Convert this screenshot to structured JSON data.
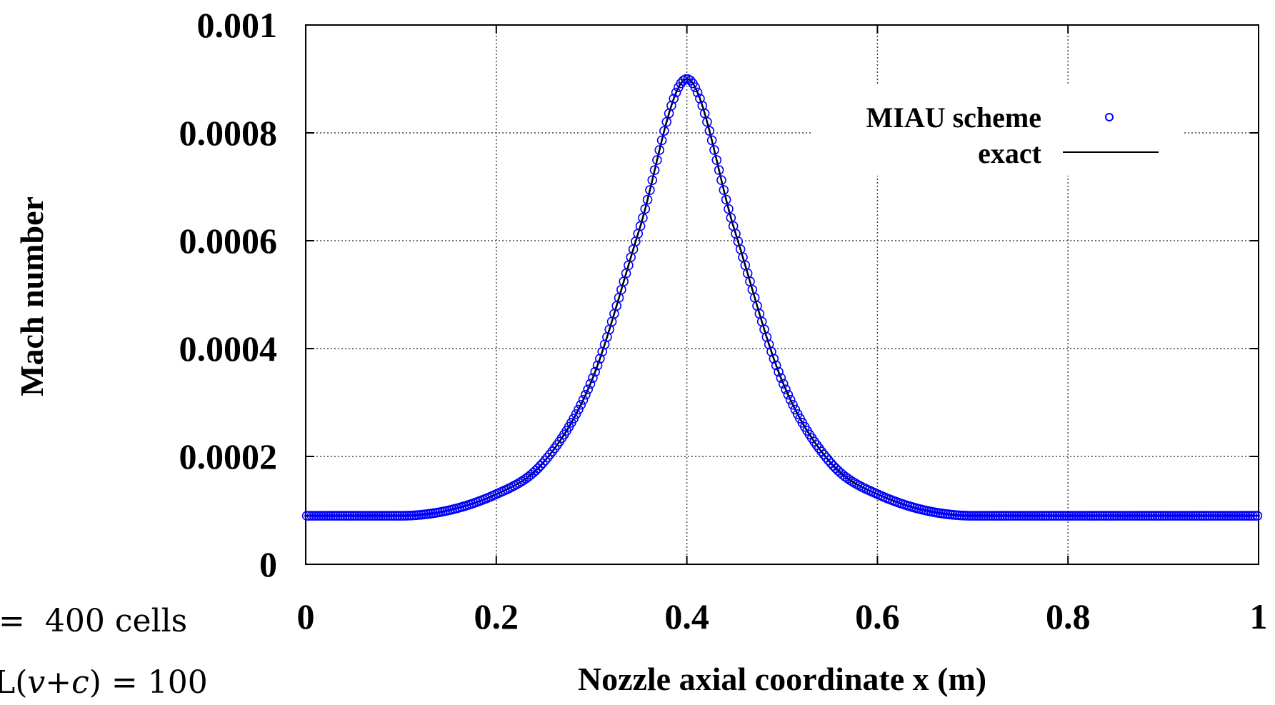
{
  "chart_data": {
    "type": "scatter",
    "xlabel": "Nozzle axial coordinate x (m)",
    "ylabel": "Mach number",
    "xlim": [
      0,
      1
    ],
    "ylim": [
      0,
      0.001
    ],
    "x_ticks": [
      "0",
      "0.2",
      "0.4",
      "0.6",
      "0.8",
      "1"
    ],
    "y_ticks": [
      "0",
      "0.0002",
      "0.0004",
      "0.0006",
      "0.0008",
      "0.001"
    ],
    "grid": true,
    "legend_position": "top-right",
    "series": [
      {
        "name": "MIAU scheme",
        "style": "markers",
        "marker": "open-circle",
        "color": "#0000ff",
        "profile": "peak",
        "n_points": 400,
        "x": [
          0,
          0.1,
          0.2,
          0.25,
          0.3,
          0.35,
          0.4,
          0.45,
          0.5,
          0.55,
          0.6,
          0.7,
          0.8,
          1
        ],
        "y": [
          9e-05,
          9e-05,
          0.00013,
          0.00019,
          0.00034,
          0.00062,
          0.0009,
          0.00062,
          0.00034,
          0.00019,
          0.00013,
          9e-05,
          9e-05,
          9e-05
        ]
      },
      {
        "name": "exact",
        "style": "line",
        "color": "#000000",
        "profile": "peak",
        "x": [
          0,
          0.1,
          0.2,
          0.25,
          0.3,
          0.35,
          0.4,
          0.45,
          0.5,
          0.55,
          0.6,
          0.7,
          0.8,
          1
        ],
        "y": [
          9e-05,
          9e-05,
          0.00013,
          0.00019,
          0.00034,
          0.00062,
          0.0009,
          0.00062,
          0.00034,
          0.00019,
          0.00013,
          9e-05,
          9e-05,
          9e-05
        ]
      }
    ]
  },
  "annotations": {
    "cells_prefix": "=",
    "cells_text": "400 cells",
    "cfl_prefix": "L(",
    "cfl_var": "v",
    "cfl_plus": "+",
    "cfl_c": "c",
    "cfl_suffix": ") = 100"
  }
}
